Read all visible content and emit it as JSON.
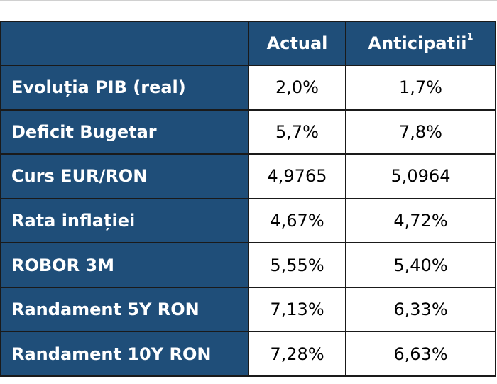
{
  "table": {
    "headers": {
      "corner": "",
      "actual": "Actual",
      "anticipated": "Anticipatii",
      "anticipated_footnote": "1"
    },
    "rows": [
      {
        "label": "Evoluția PIB (real)",
        "actual": "2,0%",
        "anticipated": "1,7%"
      },
      {
        "label": "Deficit Bugetar",
        "actual": "5,7%",
        "anticipated": "7,8%"
      },
      {
        "label": "Curs EUR/RON",
        "actual": "4,9765",
        "anticipated": "5,0964"
      },
      {
        "label": "Rata inflației",
        "actual": "4,67%",
        "anticipated": "4,72%"
      },
      {
        "label": "ROBOR 3M",
        "actual": "5,55%",
        "anticipated": "5,40%"
      },
      {
        "label": "Randament 5Y RON",
        "actual": "7,13%",
        "anticipated": "6,33%"
      },
      {
        "label": "Randament 10Y RON",
        "actual": "7,28%",
        "anticipated": "6,63%"
      }
    ]
  },
  "colors": {
    "header_blue": "#1f4e79",
    "border": "#1a1a1a",
    "cell_bg": "#ffffff"
  }
}
